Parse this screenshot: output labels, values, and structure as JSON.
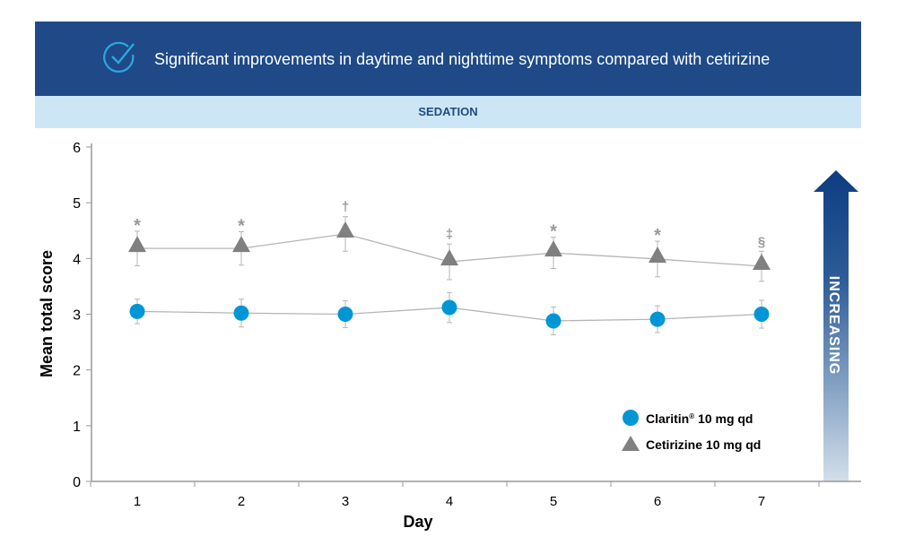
{
  "header": {
    "title": "Significant improvements in daytime and nighttime symptoms compared with cetirizine",
    "icon": "check-circle-icon"
  },
  "subheader": "SEDATION",
  "arrow_label": "INCREASING",
  "chart_data": {
    "type": "line",
    "title": "SEDATION",
    "xlabel": "Day",
    "ylabel": "Mean total score",
    "x": [
      1,
      2,
      3,
      4,
      5,
      6,
      7
    ],
    "x_ticks": [
      "1",
      "2",
      "3",
      "4",
      "5",
      "6",
      "7"
    ],
    "y_ticks": [
      "0",
      "1",
      "2",
      "3",
      "4",
      "5",
      "6"
    ],
    "ylim": [
      0,
      6
    ],
    "legend": "bottom-right",
    "series": [
      {
        "name": "Claritin® 10 mg qd",
        "legend_main": "Claritin",
        "legend_sup": "®",
        "legend_rest": " 10 mg qd",
        "marker": "circle",
        "color": "#0096d6",
        "values": [
          3.05,
          3.02,
          3.0,
          3.12,
          2.88,
          2.91,
          3.0
        ],
        "error": [
          0.22,
          0.25,
          0.24,
          0.27,
          0.25,
          0.24,
          0.25
        ]
      },
      {
        "name": "Cetirizine 10 mg qd",
        "marker": "triangle",
        "color": "#808080",
        "values": [
          4.18,
          4.18,
          4.44,
          3.94,
          4.1,
          3.99,
          3.86
        ],
        "error": [
          0.31,
          0.3,
          0.31,
          0.32,
          0.28,
          0.32,
          0.27
        ],
        "annotations": [
          "*",
          "*",
          "†",
          "‡",
          "*",
          "*",
          "§"
        ]
      }
    ]
  }
}
